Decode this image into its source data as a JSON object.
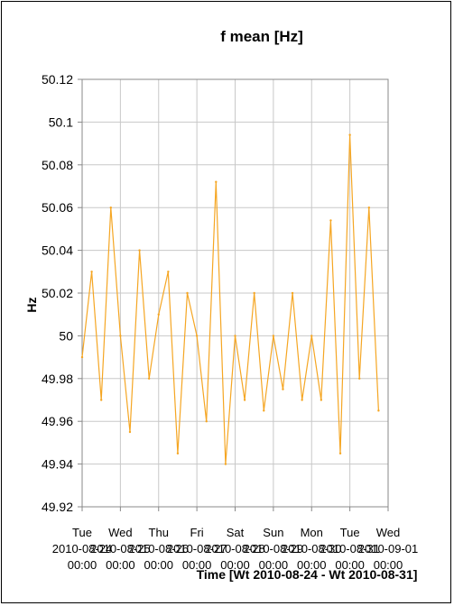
{
  "chart_data": {
    "type": "line",
    "title": "f mean [Hz]",
    "ylabel": "Hz",
    "xlabel": "Time [Wt 2010-08-24 - Wt 2010-08-31]",
    "ylim": [
      49.92,
      50.12
    ],
    "y_ticks": [
      "50.12",
      "50.1",
      "50.08",
      "50.06",
      "50.04",
      "50.02",
      "50",
      "49.98",
      "49.96",
      "49.94",
      "49.92"
    ],
    "x_ticks": [
      {
        "day": "Tue",
        "date": "2010-08-24",
        "time": "00:00"
      },
      {
        "day": "Wed",
        "date": "2010-08-25",
        "time": "00:00"
      },
      {
        "day": "Thu",
        "date": "2010-08-26",
        "time": "00:00"
      },
      {
        "day": "Fri",
        "date": "2010-08-27",
        "time": "00:00"
      },
      {
        "day": "Sat",
        "date": "2010-08-28",
        "time": "00:00"
      },
      {
        "day": "Sun",
        "date": "2010-08-29",
        "time": "00:00"
      },
      {
        "day": "Mon",
        "date": "2010-08-30",
        "time": "00:00"
      },
      {
        "day": "Tue",
        "date": "2010-08-31",
        "time": "00:00"
      },
      {
        "day": "Wed",
        "date": "2010-09-01",
        "time": "00:00"
      }
    ],
    "grid": true,
    "line_color": "#F5A623",
    "series": [
      {
        "x": [
          "2010-08-24 00:00",
          "2010-08-24 06:00",
          "2010-08-24 12:00",
          "2010-08-24 18:00",
          "2010-08-25 00:00",
          "2010-08-25 06:00",
          "2010-08-25 12:00",
          "2010-08-25 18:00",
          "2010-08-26 00:00",
          "2010-08-26 06:00",
          "2010-08-26 12:00",
          "2010-08-26 18:00",
          "2010-08-27 00:00",
          "2010-08-27 06:00",
          "2010-08-27 12:00",
          "2010-08-27 18:00",
          "2010-08-28 00:00",
          "2010-08-28 06:00",
          "2010-08-28 12:00",
          "2010-08-28 18:00",
          "2010-08-29 00:00",
          "2010-08-29 06:00",
          "2010-08-29 12:00",
          "2010-08-29 18:00",
          "2010-08-30 00:00",
          "2010-08-30 06:00",
          "2010-08-30 12:00",
          "2010-08-30 18:00",
          "2010-08-31 00:00",
          "2010-08-31 06:00",
          "2010-08-31 12:00",
          "2010-08-31 18:00"
        ],
        "values": [
          49.99,
          50.03,
          49.97,
          50.06,
          50.0,
          49.955,
          50.04,
          49.98,
          50.01,
          50.03,
          49.945,
          50.02,
          50.0,
          49.96,
          50.072,
          49.94,
          50.0,
          49.97,
          50.02,
          49.965,
          50.0,
          49.975,
          50.02,
          49.97,
          50.0,
          49.97,
          50.054,
          49.945,
          50.094,
          49.98,
          50.06,
          49.965
        ]
      }
    ]
  }
}
